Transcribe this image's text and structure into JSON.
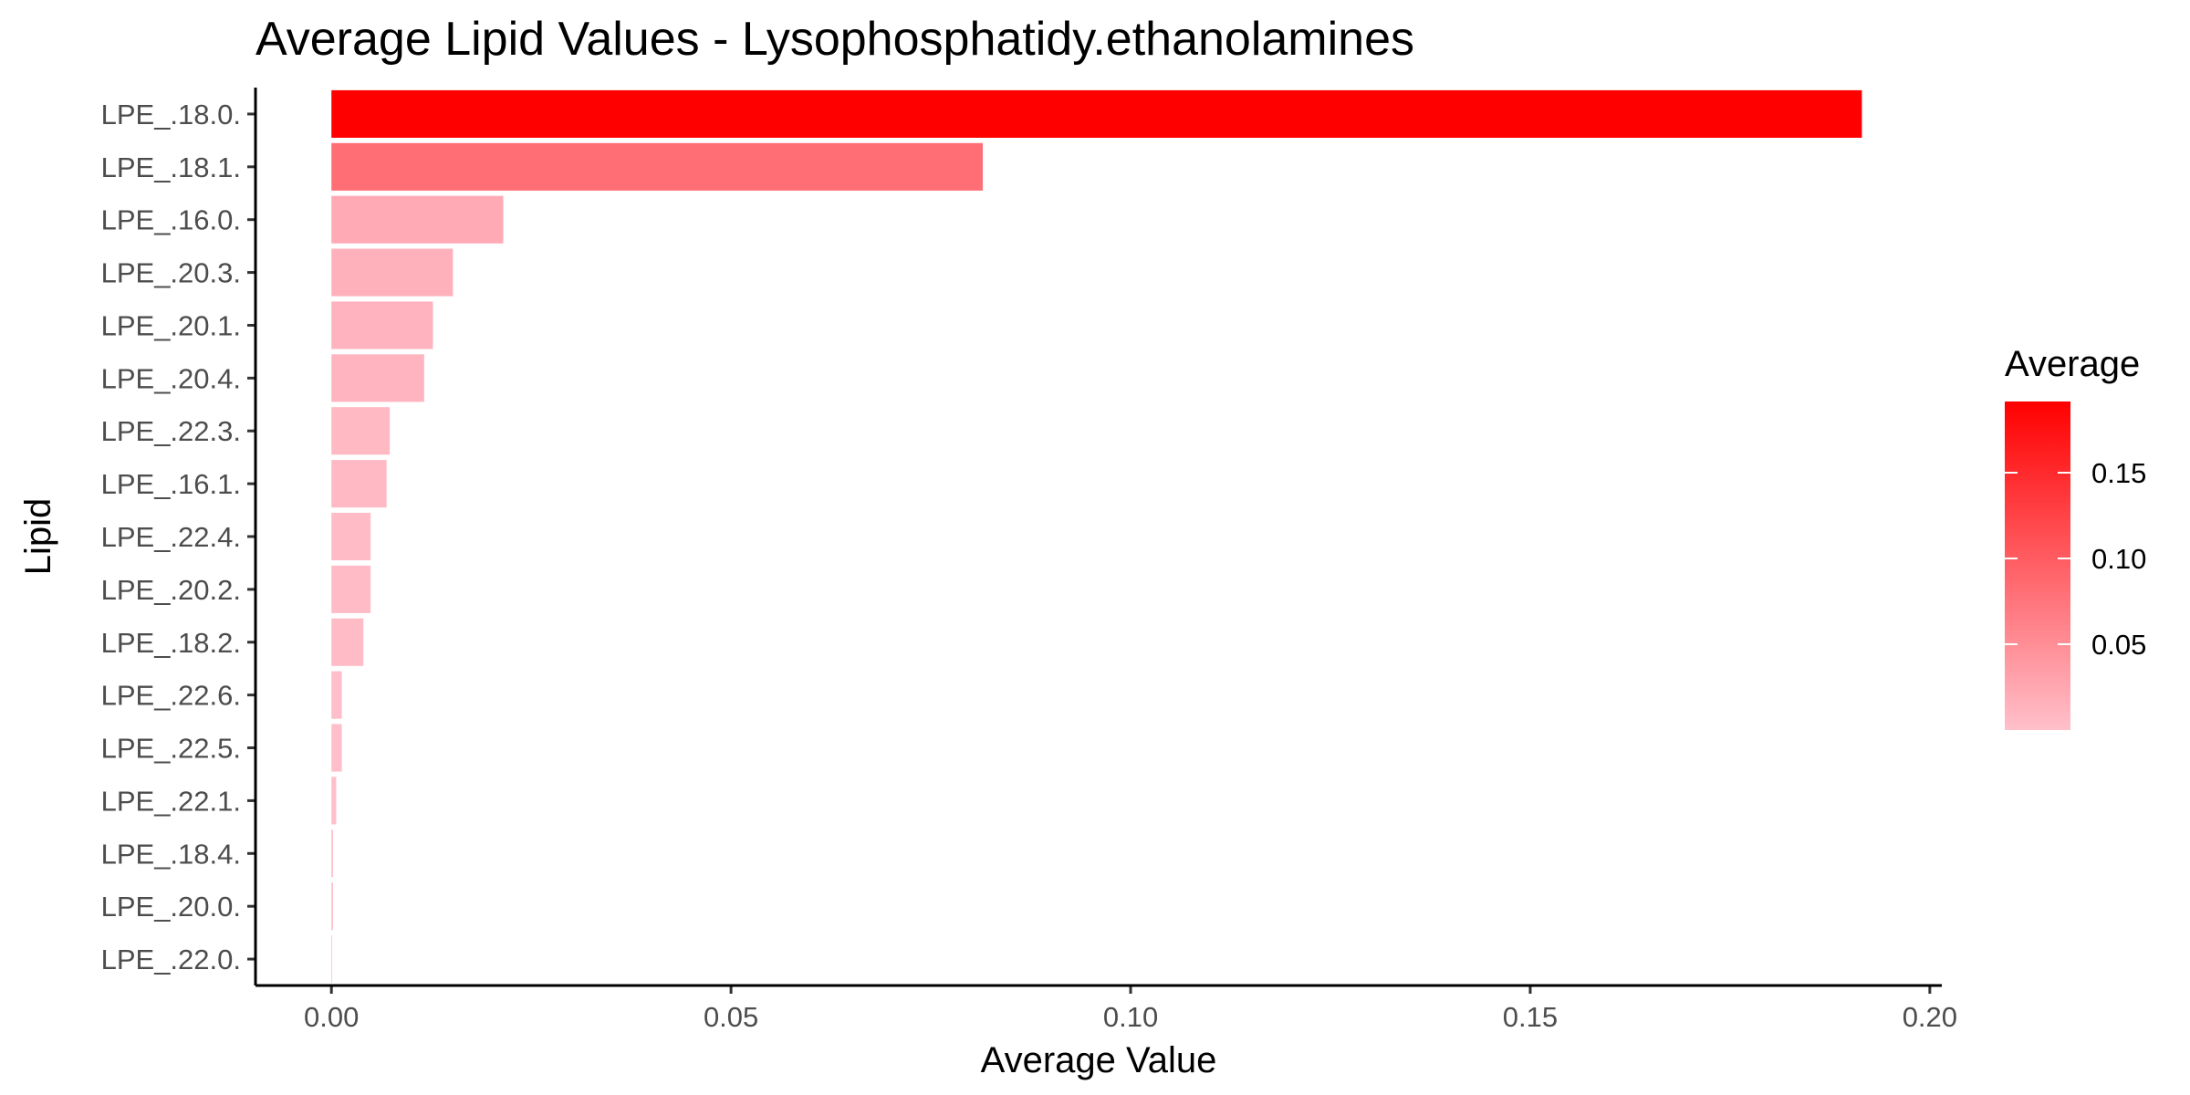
{
  "chart_data": {
    "type": "bar",
    "orientation": "horizontal",
    "title": "Average Lipid Values - Lysophosphatidy.ethanolamines",
    "xlabel": "Average Value",
    "ylabel": "Lipid",
    "xlim": [
      -0.0095,
      0.2015
    ],
    "x_ticks": [
      0.0,
      0.05,
      0.1,
      0.15,
      0.2
    ],
    "x_tick_labels": [
      "0.00",
      "0.05",
      "0.10",
      "0.15",
      "0.20"
    ],
    "grid": false,
    "categories": [
      "LPE_.18.0.",
      "LPE_.18.1.",
      "LPE_.16.0.",
      "LPE_.20.3.",
      "LPE_.20.1.",
      "LPE_.20.4.",
      "LPE_.22.3.",
      "LPE_.16.1.",
      "LPE_.22.4.",
      "LPE_.20.2.",
      "LPE_.18.2.",
      "LPE_.22.6.",
      "LPE_.22.5.",
      "LPE_.22.1.",
      "LPE_.18.4.",
      "LPE_.20.0.",
      "LPE_.22.0."
    ],
    "values": [
      0.1915,
      0.0815,
      0.0215,
      0.0152,
      0.0127,
      0.0116,
      0.0073,
      0.0069,
      0.0049,
      0.0049,
      0.004,
      0.0013,
      0.0013,
      0.0006,
      0.0002,
      0.0002,
      0.0
    ],
    "legend": {
      "title": "Average",
      "position": "right",
      "type": "colorbar",
      "range": [
        0.0,
        0.1915
      ],
      "ticks": [
        0.05,
        0.1,
        0.15
      ],
      "tick_labels": [
        "0.05",
        "0.10",
        "0.15"
      ],
      "low_color": "#ffc0cb",
      "high_color": "#ff0000"
    }
  }
}
